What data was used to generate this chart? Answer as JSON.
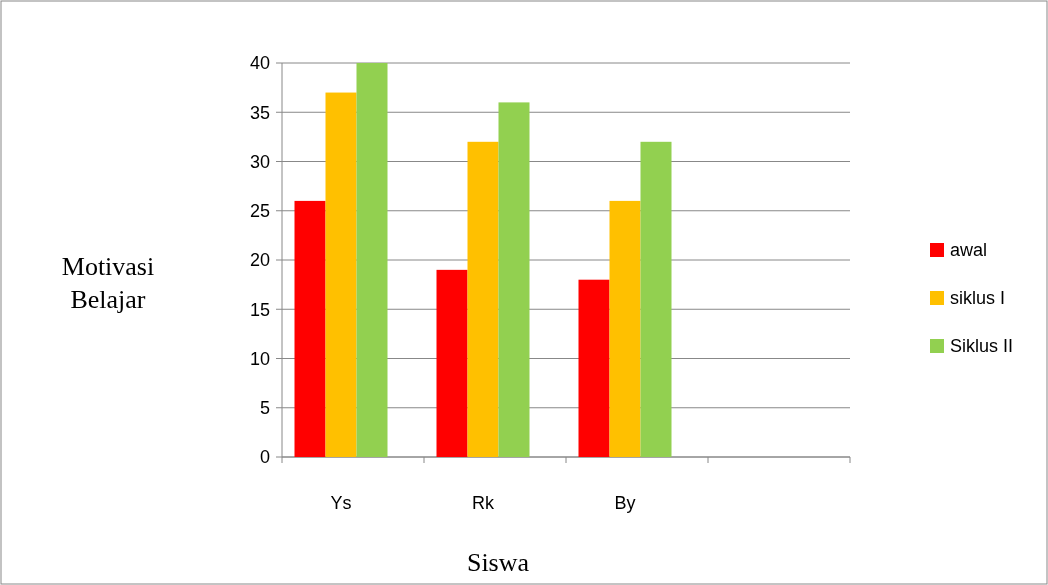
{
  "chart_data": {
    "type": "bar",
    "xlabel": "Siswa",
    "ylabel": "Motivasi Belajar",
    "categories": [
      "Ys",
      "Rk",
      "By",
      null
    ],
    "series": [
      {
        "name": "awal",
        "color": "#ff0000",
        "values": [
          26,
          19,
          18,
          null
        ]
      },
      {
        "name": "siklus I",
        "color": "#ffc000",
        "values": [
          37,
          32,
          26,
          null
        ]
      },
      {
        "name": "Siklus II",
        "color": "#92d050",
        "values": [
          40,
          36,
          32,
          null
        ]
      }
    ],
    "ylim": [
      0,
      40
    ],
    "yticks": [
      0,
      5,
      10,
      15,
      20,
      25,
      30,
      35,
      40
    ],
    "grid": "y",
    "legend": "right"
  }
}
